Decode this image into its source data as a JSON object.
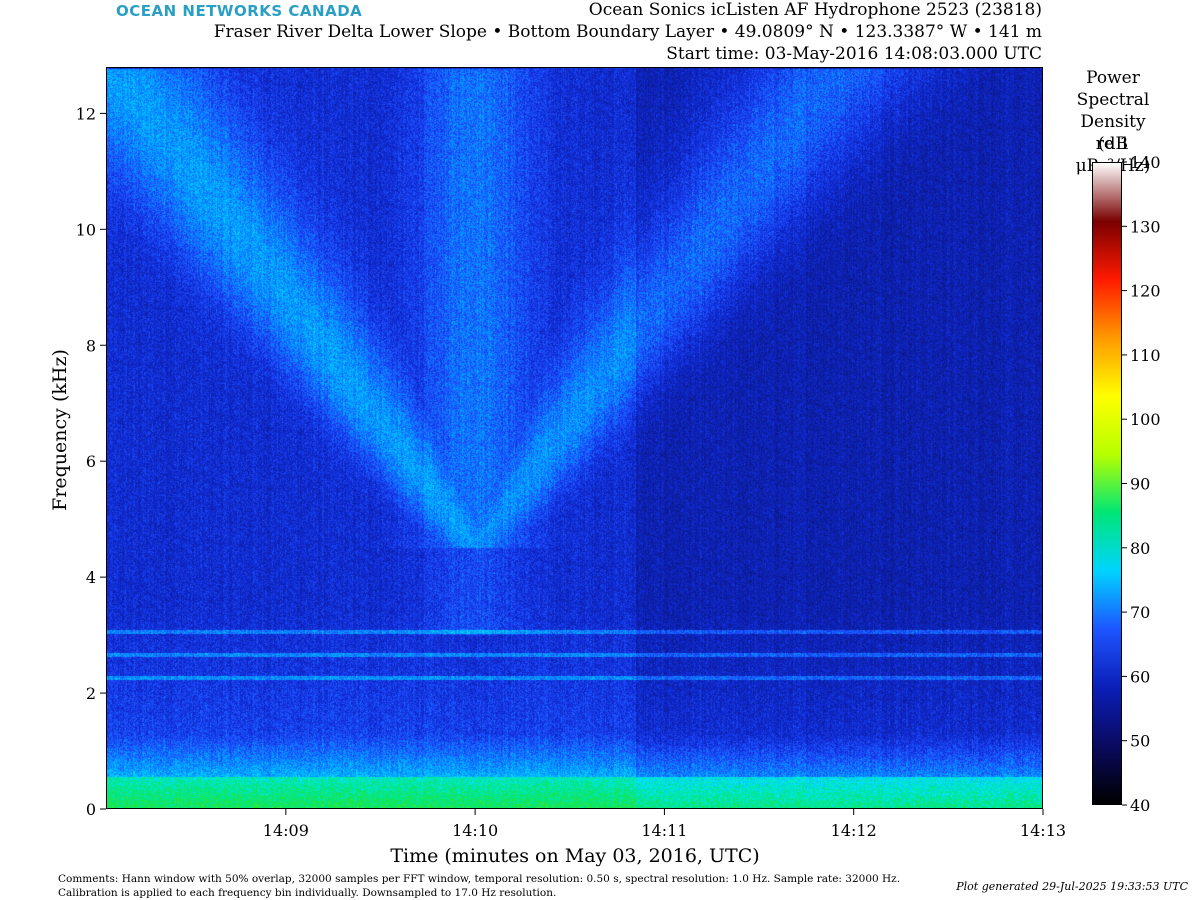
{
  "header": {
    "brand": "OCEAN NETWORKS CANADA",
    "title_line1": "Ocean Sonics icListen AF Hydrophone 2523 (23818)",
    "title_line2": "Fraser River Delta Lower Slope • Bottom Boundary Layer • 49.0809° N • 123.3387° W • 141 m",
    "title_line3": "Start time: 03-May-2016 14:08:03.000 UTC"
  },
  "chart_data": {
    "type": "heatmap",
    "xlabel": "Time (minutes on May 03, 2016, UTC)",
    "ylabel": "Frequency (kHz)",
    "x_ticks": [
      "14:09",
      "14:10",
      "14:11",
      "14:12",
      "14:13"
    ],
    "x_tick_minutes_since_start": [
      0.95,
      1.95,
      2.95,
      3.95,
      4.95
    ],
    "xlim_minutes": [
      0,
      4.95
    ],
    "y_ticks": [
      0,
      2,
      4,
      6,
      8,
      10,
      12
    ],
    "ylim_khz": [
      0,
      12.8
    ],
    "colorbar": {
      "label_lines": [
        "Power",
        "Spectral",
        "Density (dB",
        "re 1 μPa²/Hz)"
      ],
      "ticks": [
        40,
        50,
        60,
        70,
        80,
        90,
        100,
        110,
        120,
        130,
        140
      ],
      "range_db": [
        40,
        140
      ],
      "colors": [
        "#000000",
        "#0a0a60",
        "#0b1fb8",
        "#1e55ff",
        "#00d4ff",
        "#00e676",
        "#b6ff00",
        "#ffff00",
        "#ff9900",
        "#ff1a00",
        "#7a0000",
        "#ffffff"
      ]
    },
    "features": {
      "tonal_lines_khz": [
        3.05,
        2.65,
        2.25
      ],
      "low_frequency_band_khz": [
        0,
        1.3
      ],
      "broadband_plume_center_minutes": 1.95
    }
  },
  "footer": {
    "comments_line1": "Comments: Hann window with 50% overlap, 32000 samples per FFT window, temporal resolution: 0.50 s, spectral resolution: 1.0 Hz. Sample rate: 32000 Hz.",
    "comments_line2": "Calibration is applied to each frequency bin individually. Downsampled to 17.0 Hz resolution.",
    "generated": "Plot generated 29-Jul-2025 19:33:53 UTC"
  }
}
